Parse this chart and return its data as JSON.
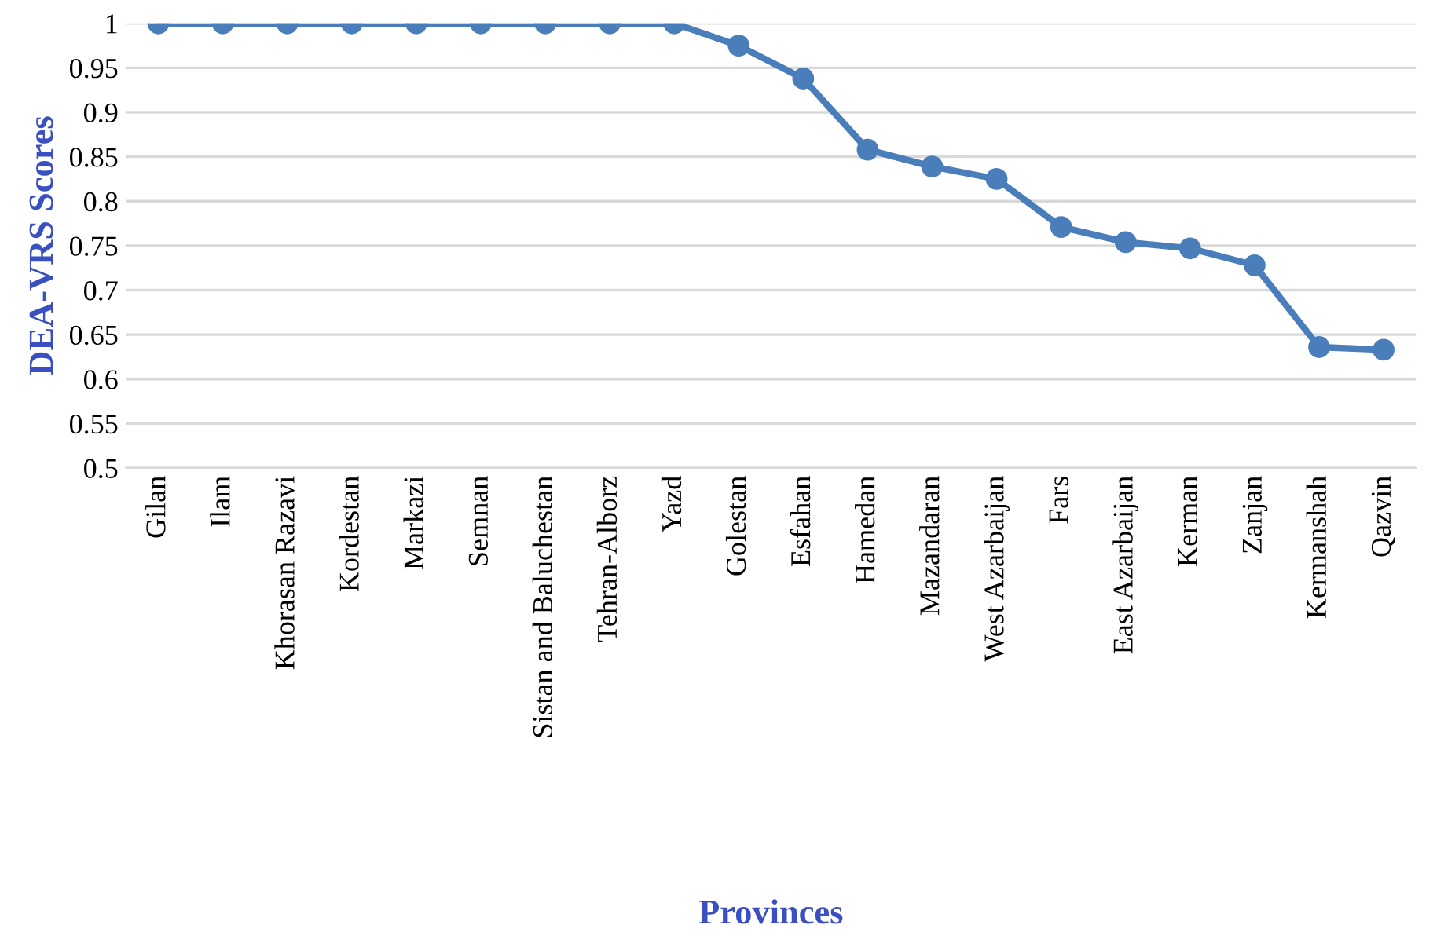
{
  "chart_data": {
    "type": "line",
    "xlabel": "Provinces",
    "ylabel": "DEA-VRS Scores",
    "categories": [
      "Gilan",
      "Ilam",
      "Khorasan Razavi",
      "Kordestan",
      "Markazi",
      "Semnan",
      "Sistan and Baluchestan",
      "Tehran-Alborz",
      "Yazd",
      "Golestan",
      "Esfahan",
      "Hamedan",
      "Mazandaran",
      "West Azarbaijan",
      "Fars",
      "East Azarbaijan",
      "Kerman",
      "Zanjan",
      "Kermanshah",
      "Qazvin"
    ],
    "series": [
      {
        "color": "#4a7ebb",
        "values": [
          1,
          1,
          1,
          1,
          1,
          1,
          1,
          1,
          1,
          0.975,
          0.938,
          0.858,
          0.839,
          0.825,
          0.771,
          0.754,
          0.747,
          0.728,
          0.636,
          0.633
        ]
      }
    ],
    "ylim": [
      0.5,
      1
    ],
    "yticks": [
      0.5,
      0.55,
      0.6,
      0.65,
      0.7,
      0.75,
      0.8,
      0.85,
      0.9,
      0.95,
      1
    ],
    "grid": "y",
    "marker": "circle",
    "line_style": "solid",
    "legend": false
  }
}
